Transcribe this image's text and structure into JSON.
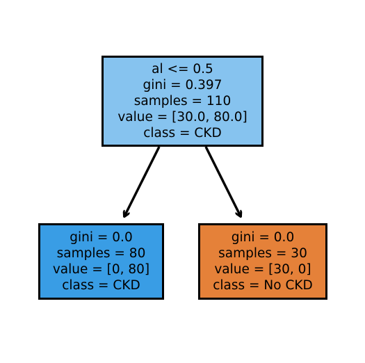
{
  "tree": {
    "root": {
      "lines": [
        "al <= 0.5",
        "gini = 0.397",
        "samples = 110",
        "value = [30.0, 80.0]",
        "class = CKD"
      ],
      "fill": "#86c3ef"
    },
    "left": {
      "lines": [
        "gini = 0.0",
        "samples = 80",
        "value = [0, 80]",
        "class = CKD"
      ],
      "fill": "#399de5"
    },
    "right": {
      "lines": [
        "gini = 0.0",
        "samples = 30",
        "value = [30, 0]",
        "class = No CKD"
      ],
      "fill": "#e58139"
    }
  },
  "colors": {
    "border": "#000000",
    "edge": "#000000",
    "background": "#ffffff"
  }
}
